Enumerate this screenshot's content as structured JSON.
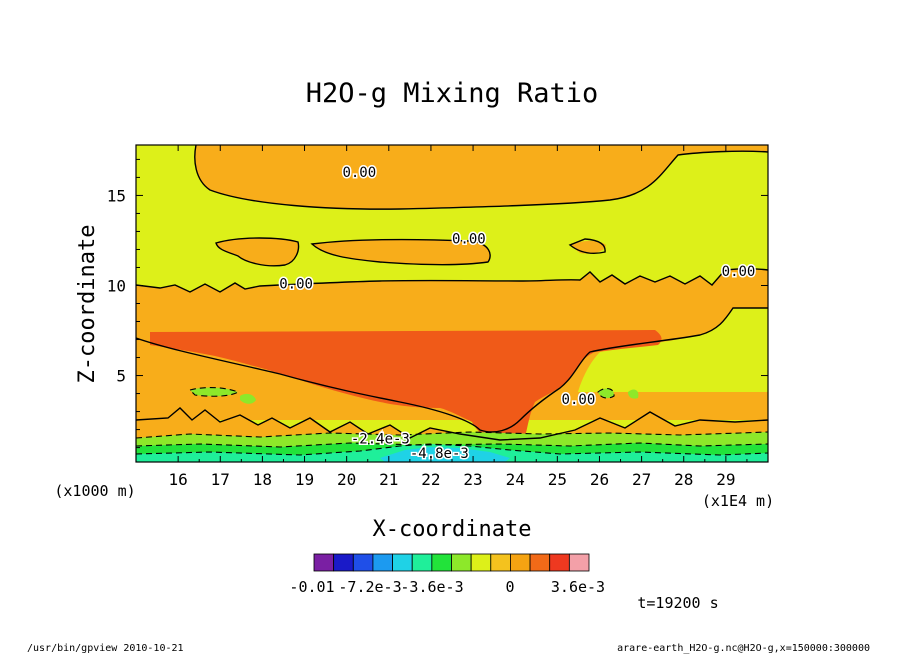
{
  "chart_data": {
    "type": "heatmap",
    "title": "H2O-g Mixing Ratio",
    "xlabel": "X-coordinate",
    "ylabel": "Z-coordinate",
    "x_unit": "(x1E4 m)",
    "y_unit": "(x1000 m)",
    "xlim": [
      15.0,
      30.0
    ],
    "ylim": [
      0.2,
      17.8
    ],
    "x_ticks": [
      "16",
      "17",
      "18",
      "19",
      "20",
      "21",
      "22",
      "23",
      "24",
      "25",
      "26",
      "27",
      "28",
      "29"
    ],
    "y_ticks": [
      "5",
      "10",
      "15"
    ],
    "time_label": "t=19200 s",
    "contour_labels": [
      {
        "text": "0.00",
        "x": 20.3,
        "z": 16.3
      },
      {
        "text": "0.00",
        "x": 22.9,
        "z": 12.6
      },
      {
        "text": "0.00",
        "x": 18.8,
        "z": 10.1
      },
      {
        "text": "0.00",
        "x": 29.3,
        "z": 10.8
      },
      {
        "text": "0.00",
        "x": 25.5,
        "z": 3.7
      },
      {
        "text": "-2.4e-3",
        "x": 20.8,
        "z": 1.5
      },
      {
        "text": "-4.8e-3",
        "x": 22.2,
        "z": 0.7
      }
    ],
    "colorbar": {
      "labels": [
        "-0.01",
        "-7.2e-3",
        "-3.6e-3",
        "0",
        "3.6e-3"
      ],
      "colors": [
        "#7a1fa3",
        "#1a1ac8",
        "#1f4fe8",
        "#1c9af0",
        "#1fd2e6",
        "#1fef9a",
        "#22e33a",
        "#8de82a",
        "#ddf019",
        "#f4c21e",
        "#f5a312",
        "#f26a18",
        "#ee3920",
        "#f3a0a8"
      ]
    },
    "field_colors": {
      "background": "#ddf019",
      "positive_1": "#f8ad1a",
      "positive_2": "#f05a18",
      "negative_1": "#8de82a",
      "negative_2": "#22e33a",
      "negative_3": "#1fef9a",
      "negative_4": "#1fd2e6"
    }
  },
  "footer": {
    "left": "/usr/bin/gpview  2010-10-21",
    "right": "arare-earth_H2O-g.nc@H2O-g,x=150000:300000"
  }
}
